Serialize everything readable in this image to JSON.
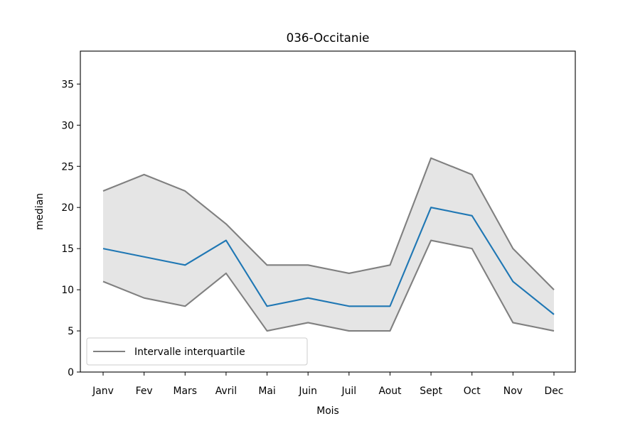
{
  "chart_data": {
    "type": "line",
    "title": "036-Occitanie",
    "xlabel": "Mois",
    "ylabel": "median",
    "categories": [
      "Janv",
      "Fev",
      "Mars",
      "Avril",
      "Mai",
      "Juin",
      "Juil",
      "Aout",
      "Sept",
      "Oct",
      "Nov",
      "Dec"
    ],
    "ylim": [
      0,
      39
    ],
    "yticks": [
      0,
      5,
      10,
      15,
      20,
      25,
      30,
      35
    ],
    "series": [
      {
        "role": "median",
        "values": [
          15,
          14,
          13,
          16,
          8,
          9,
          8,
          8,
          20,
          19,
          11,
          7
        ]
      },
      {
        "role": "q3",
        "values": [
          22,
          24,
          22,
          18,
          13,
          13,
          12,
          13,
          26,
          24,
          15,
          10
        ]
      },
      {
        "role": "q1",
        "values": [
          11,
          9,
          8,
          12,
          5,
          6,
          5,
          5,
          16,
          15,
          6,
          5
        ]
      }
    ],
    "legend": {
      "position": "lower-left",
      "entries": [
        "Intervalle interquartile"
      ]
    },
    "grid": false,
    "colors": {
      "median": "#1f77b4",
      "quartile": "#808080",
      "band": "#e5e5e5",
      "axes": "#000000"
    }
  }
}
